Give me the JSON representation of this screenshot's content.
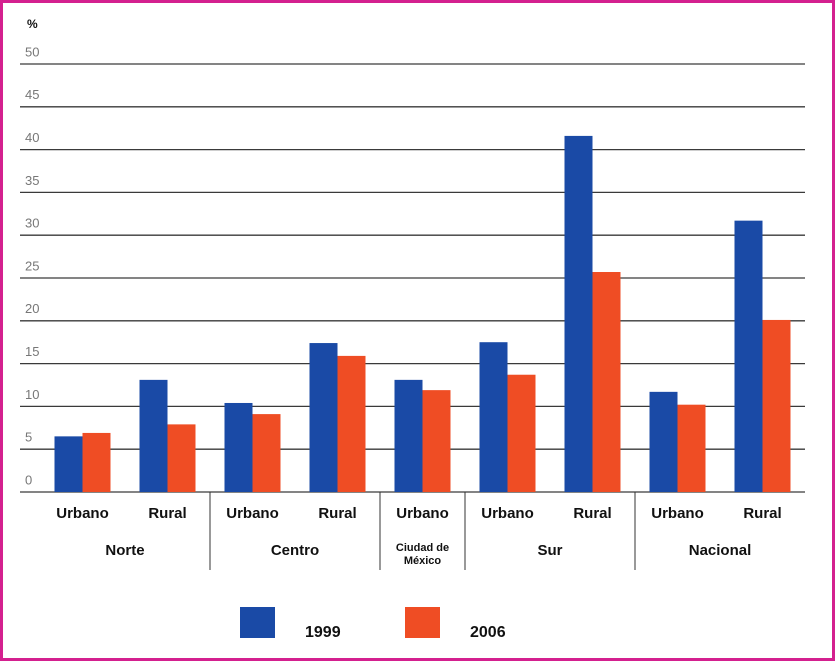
{
  "chart_data": {
    "type": "bar",
    "y_label": "%",
    "groups": [
      {
        "name": "Norte",
        "categories": [
          "Urbano",
          "Rural"
        ]
      },
      {
        "name": "Centro",
        "categories": [
          "Urbano",
          "Rural"
        ]
      },
      {
        "name": "Ciudad de México",
        "categories": [
          "Urbano"
        ]
      },
      {
        "name": "Sur",
        "categories": [
          "Urbano",
          "Rural"
        ]
      },
      {
        "name": "Nacional",
        "categories": [
          "Urbano",
          "Rural"
        ]
      }
    ],
    "series": [
      {
        "name": "1999",
        "color": "#1a4aa6",
        "values": [
          6.5,
          13.1,
          10.4,
          17.4,
          13.1,
          17.5,
          41.6,
          11.7,
          31.7
        ]
      },
      {
        "name": "2006",
        "color": "#ef4d24",
        "values": [
          6.9,
          7.9,
          9.1,
          15.9,
          11.9,
          13.7,
          25.7,
          10.2,
          20.1
        ]
      }
    ],
    "ylim": [
      0,
      50
    ],
    "yticks": [
      0,
      5,
      10,
      15,
      20,
      25,
      30,
      35,
      40,
      45,
      50
    ],
    "grid": true
  }
}
